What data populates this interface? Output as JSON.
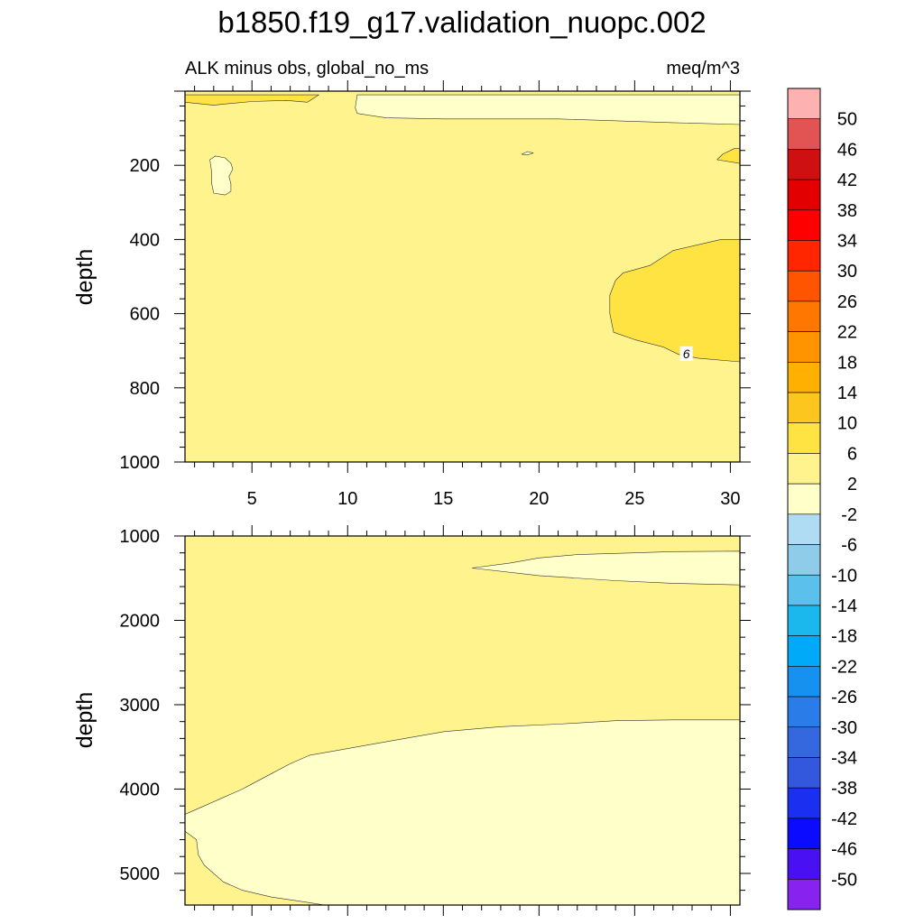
{
  "title": "b1850.f19_g17.validation_nuopc.002",
  "subtitle_left": "ALK minus obs, global_no_ms",
  "subtitle_right": "meq/m^3",
  "chart_data": [
    {
      "type": "contour",
      "panel": "upper",
      "ylabel": "depth",
      "xlabel": "",
      "xlim": [
        1.5,
        30.5
      ],
      "ylim": [
        1000,
        0
      ],
      "xticks": [
        5,
        10,
        15,
        20,
        25,
        30
      ],
      "yticks": [
        200,
        400,
        600,
        800,
        1000
      ],
      "background_level": "2 to 6",
      "regions": [
        {
          "level": "6 to 10",
          "points": [
            [
              1.5,
              10
            ],
            [
              8.5,
              10
            ],
            [
              7.9,
              30
            ],
            [
              6.8,
              25
            ],
            [
              5,
              28
            ],
            [
              3.5,
              35
            ],
            [
              3,
              38
            ],
            [
              1.5,
              30
            ]
          ]
        },
        {
          "level": "-2 to 2",
          "points": [
            [
              10.5,
              10
            ],
            [
              30.5,
              10
            ],
            [
              30.5,
              90
            ],
            [
              27,
              85
            ],
            [
              21,
              75
            ],
            [
              15,
              75
            ],
            [
              12,
              72
            ],
            [
              10.5,
              60
            ],
            [
              10.4,
              45
            ]
          ]
        },
        {
          "level": "-2 to 2",
          "points": [
            [
              2.8,
              185
            ],
            [
              3.1,
              175
            ],
            [
              3.6,
              180
            ],
            [
              3.9,
              195
            ],
            [
              4,
              210
            ],
            [
              3.8,
              230
            ],
            [
              3.9,
              250
            ],
            [
              3.9,
              270
            ],
            [
              3.6,
              280
            ],
            [
              3,
              275
            ],
            [
              2.9,
              250
            ],
            [
              2.9,
              220
            ]
          ]
        },
        {
          "level": "-2 to 2",
          "points": [
            [
              19.1,
              170
            ],
            [
              19.4,
              163
            ],
            [
              19.7,
              167
            ],
            [
              19.4,
              172
            ]
          ]
        },
        {
          "level": "6 to 10",
          "points": [
            [
              30.5,
              195
            ],
            [
              29.3,
              185
            ],
            [
              29.6,
              170
            ],
            [
              30.2,
              155
            ],
            [
              30.5,
              155
            ]
          ]
        },
        {
          "level": "6 to 10",
          "points": [
            [
              30.5,
              400
            ],
            [
              29.5,
              400
            ],
            [
              27,
              430
            ],
            [
              25.8,
              470
            ],
            [
              24.4,
              490
            ],
            [
              24,
              510
            ],
            [
              23.7,
              550
            ],
            [
              23.7,
              600
            ],
            [
              23.9,
              650
            ],
            [
              25,
              670
            ],
            [
              26.5,
              690
            ],
            [
              27.3,
              710
            ],
            [
              28.3,
              720
            ],
            [
              30.5,
              730
            ]
          ]
        }
      ],
      "contour_labels": [
        {
          "text": "6",
          "x": 27.7,
          "y": 710
        }
      ]
    },
    {
      "type": "contour",
      "panel": "lower",
      "ylabel": "depth",
      "xlabel": "",
      "xlim": [
        1.5,
        30.5
      ],
      "ylim": [
        5375,
        1000
      ],
      "yticks": [
        1000,
        2000,
        3000,
        4000,
        5000
      ],
      "background_level": "2 to 6",
      "regions": [
        {
          "level": "-2 to 2",
          "points": [
            [
              16.5,
              1380
            ],
            [
              18.5,
              1320
            ],
            [
              20,
              1260
            ],
            [
              22,
              1220
            ],
            [
              25,
              1200
            ],
            [
              27,
              1185
            ],
            [
              30.5,
              1180
            ],
            [
              30.5,
              1580
            ],
            [
              27,
              1560
            ],
            [
              24,
              1530
            ],
            [
              20,
              1470
            ],
            [
              16.5,
              1380
            ]
          ]
        },
        {
          "level": "-2 to 2",
          "points": [
            [
              1.5,
              4300
            ],
            [
              2.5,
              4200
            ],
            [
              3.5,
              4100
            ],
            [
              4.5,
              4000
            ],
            [
              5,
              3940
            ],
            [
              5.5,
              3880
            ],
            [
              7,
              3700
            ],
            [
              8,
              3600
            ],
            [
              10,
              3520
            ],
            [
              12,
              3440
            ],
            [
              15,
              3320
            ],
            [
              18,
              3260
            ],
            [
              21,
              3230
            ],
            [
              24,
              3190
            ],
            [
              27,
              3180
            ],
            [
              30.5,
              3180
            ],
            [
              30.5,
              5375
            ],
            [
              8.8,
              5375
            ],
            [
              7.8,
              5340
            ],
            [
              6,
              5280
            ],
            [
              4.5,
              5200
            ],
            [
              3.5,
              5100
            ],
            [
              2.5,
              4900
            ],
            [
              2.2,
              4780
            ],
            [
              2.1,
              4600
            ],
            [
              1.5,
              4500
            ]
          ]
        }
      ]
    }
  ],
  "colorbar": {
    "labels": [
      "50",
      "46",
      "42",
      "38",
      "34",
      "30",
      "26",
      "22",
      "18",
      "14",
      "10",
      "6",
      "2",
      "-2",
      "-6",
      "-10",
      "-14",
      "-18",
      "-22",
      "-26",
      "-30",
      "-34",
      "-38",
      "-42",
      "-46",
      "-50"
    ],
    "colors": [
      "#fdb1b1",
      "#e25454",
      "#cf1010",
      "#e30000",
      "#ff0000",
      "#ff2600",
      "#ff5500",
      "#ff7700",
      "#ff9400",
      "#ffb000",
      "#fcc61e",
      "#ffe342",
      "#fff38e",
      "#ffffc9",
      "#b0dcf3",
      "#8fcce9",
      "#5bc0eb",
      "#1ab8ed",
      "#00aaf8",
      "#1691f0",
      "#2a7ce8",
      "#3568de",
      "#3458dd",
      "#1b2ff0",
      "#0b0bff",
      "#4a10f4",
      "#8822ee"
    ]
  },
  "level_colors": {
    "-2 to 2": "#ffffc9",
    "2 to 6": "#fff38e",
    "6 to 10": "#ffe342"
  }
}
